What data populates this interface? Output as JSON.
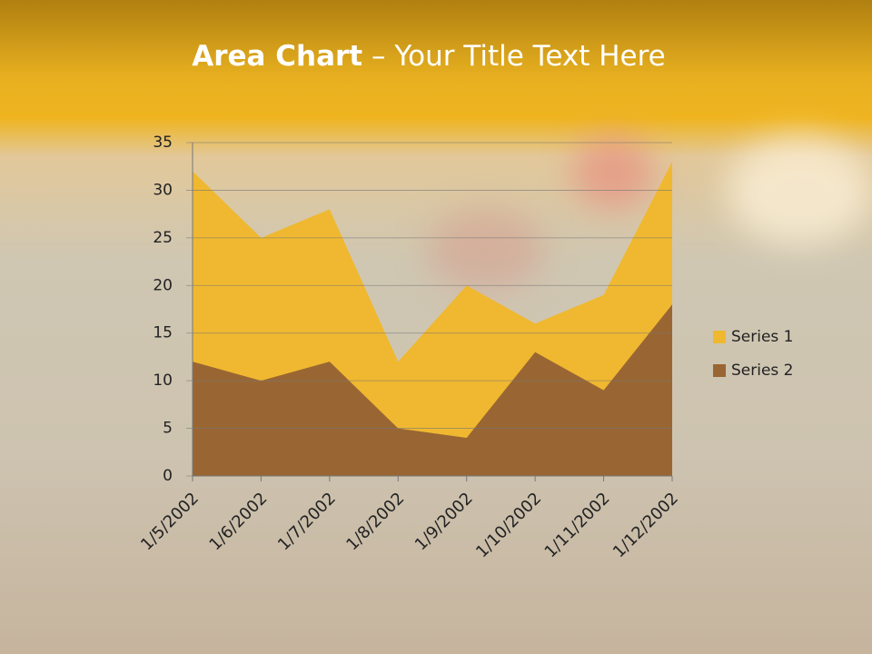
{
  "chart_data": {
    "type": "area",
    "title_bold": "Area Chart",
    "title_rest": "– Your Title Text Here",
    "categories": [
      "1/5/2002",
      "1/6/2002",
      "1/7/2002",
      "1/8/2002",
      "1/9/2002",
      "1/10/2002",
      "1/11/2002",
      "1/12/2002"
    ],
    "series": [
      {
        "name": "Series 1",
        "color": "#f0b830",
        "values": [
          32,
          25,
          28,
          12,
          20,
          16,
          19,
          33
        ]
      },
      {
        "name": "Series 2",
        "color": "#996633",
        "values": [
          12,
          10,
          12,
          5,
          4,
          13,
          9,
          18
        ]
      }
    ],
    "ylim": [
      0,
      35
    ],
    "yticks": [
      0,
      5,
      10,
      15,
      20,
      25,
      30,
      35
    ],
    "grid": true,
    "legend": "right"
  }
}
